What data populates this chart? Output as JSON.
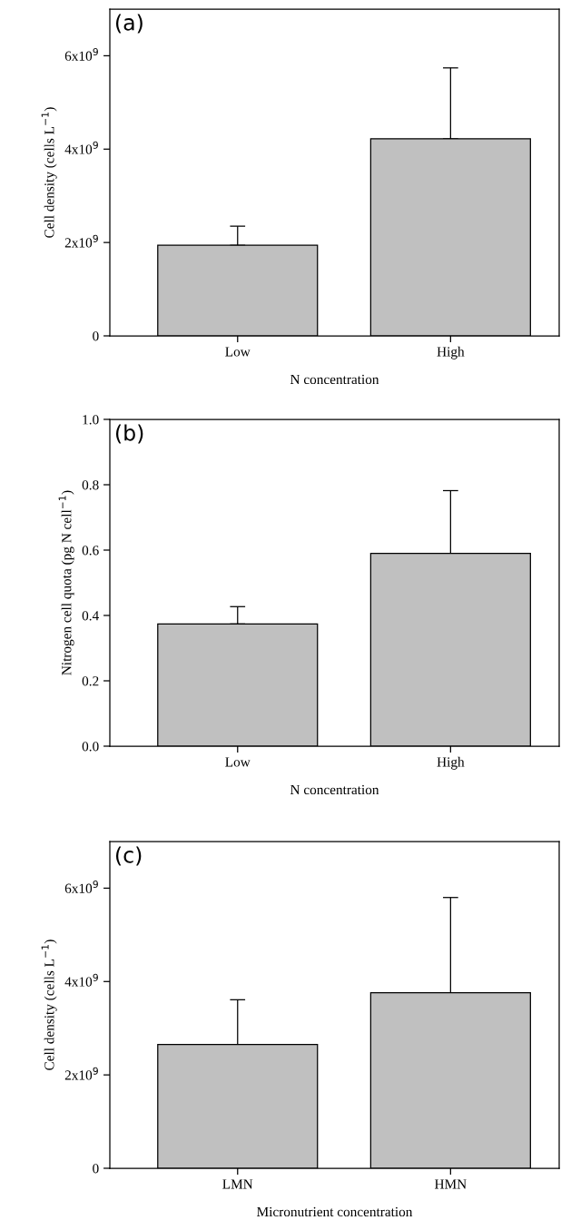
{
  "chart_data": [
    {
      "type": "bar",
      "annotations": [
        "(a)"
      ],
      "xlabel": "N concentration",
      "ylabel": "Cell density (cells L$^{−1}$)",
      "categories": [
        "Low",
        "High"
      ],
      "values": [
        1940000000,
        4220000000
      ],
      "errors": [
        [
          1940000000,
          2350000000
        ],
        [
          4220000000,
          5740000000
        ]
      ],
      "color": "#c0c0c0",
      "ylim": [
        0,
        7000000000
      ],
      "yticks": [
        0,
        {
          "value": 2000000000,
          "label": "2x10$^{9}$"
        },
        {
          "value": 4000000000,
          "label": "4x10$^{9}$"
        },
        {
          "value": 6000000000,
          "label": "6x10$^{9}$"
        }
      ],
      "grid": false,
      "legend": false
    },
    {
      "type": "bar",
      "annotations": [
        "(b)"
      ],
      "xlabel": "N concentration",
      "ylabel": "Nitrogen cell quota (pg N cell$^{−1}$)",
      "categories": [
        "Low",
        "High"
      ],
      "values": [
        0.374,
        0.59
      ],
      "errors": [
        [
          0.374,
          0.427
        ],
        [
          0.59,
          0.782
        ]
      ],
      "color": "#c0c0c0",
      "ylim": [
        0,
        1.0
      ],
      "yticks": [
        {
          "value": 0,
          "label": "0.0"
        },
        0.2,
        0.4,
        0.6,
        0.8,
        {
          "value": 1.0,
          "label": "1.0"
        }
      ],
      "grid": false,
      "legend": false
    },
    {
      "type": "bar",
      "annotations": [
        "(c)"
      ],
      "xlabel": "Micronutrient concentration",
      "ylabel": "Cell density (cells L$^{−1}$)",
      "categories": [
        "LMN",
        "HMN"
      ],
      "values": [
        2650000000,
        3760000000
      ],
      "errors": [
        [
          2650000000,
          3610000000
        ],
        [
          3760000000,
          5800000000
        ]
      ],
      "color": "#c0c0c0",
      "ylim": [
        0,
        7000000000
      ],
      "yticks": [
        0,
        {
          "value": 2000000000,
          "label": "2x10$^{9}$"
        },
        {
          "value": 4000000000,
          "label": "4x10$^{9}$"
        },
        {
          "value": 6000000000,
          "label": "6x10$^{9}$"
        }
      ],
      "grid": false,
      "legend": false
    }
  ]
}
